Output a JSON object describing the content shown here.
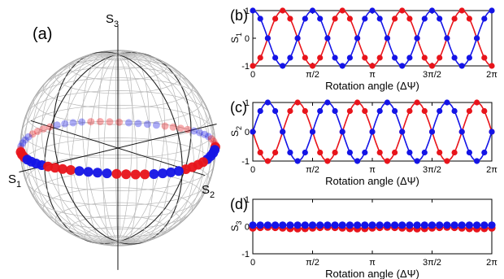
{
  "colors": {
    "red": "#e8141b",
    "blue": "#1414e6",
    "grid": "#b8b8b8",
    "axis": "#000000"
  },
  "sphere": {
    "panel_label": "(a)",
    "axis_labels": {
      "s1": "S",
      "s1_sub": "1",
      "s2": "S",
      "s2_sub": "2",
      "s3": "S",
      "s3_sub": "3"
    }
  },
  "chart_data": [
    {
      "type": "scatter",
      "panel": "(b)",
      "xlabel": "Rotation angle (ΔΨ)",
      "ylabel": "S",
      "ylabel_sub": "1",
      "xlim": [
        0,
        6.2832
      ],
      "ylim": [
        -1,
        1
      ],
      "xticks": [
        "0",
        "π/2",
        "π",
        "3π/2",
        "2π"
      ],
      "yticks": [
        "1",
        "0",
        "-1"
      ],
      "series": [
        {
          "color": "red",
          "model": "S1 = -cos(4ΔΨ)",
          "points": "sampled every π/16, values -cos(4x)"
        },
        {
          "color": "blue",
          "model": "S1 = cos(4ΔΨ)",
          "points": "sampled every π/16, values cos(4x)"
        }
      ]
    },
    {
      "type": "scatter",
      "panel": "(c)",
      "xlabel": "Rotation angle (ΔΨ)",
      "ylabel": "S",
      "ylabel_sub": "2",
      "xlim": [
        0,
        6.2832
      ],
      "ylim": [
        -1,
        1
      ],
      "xticks": [
        "0",
        "π/2",
        "π",
        "3π/2",
        "2π"
      ],
      "yticks": [
        "1",
        "0",
        "-1"
      ],
      "series": [
        {
          "color": "red",
          "model": "S2 = -sin(4ΔΨ)"
        },
        {
          "color": "blue",
          "model": "S2 = sin(4ΔΨ)"
        }
      ]
    },
    {
      "type": "scatter",
      "panel": "(d)",
      "xlabel": "Rotation angle (ΔΨ)",
      "ylabel": "S",
      "ylabel_sub": "3",
      "xlim": [
        0,
        6.2832
      ],
      "ylim": [
        -1,
        1
      ],
      "xticks": [
        "0",
        "π/2",
        "π",
        "3π/2",
        "2π"
      ],
      "yticks": [
        "1",
        "0",
        "-1"
      ],
      "series": [
        {
          "color": "red",
          "model": "S3 ≈ -0.05 + 0.03 sin(4ΔΨ)"
        },
        {
          "color": "blue",
          "model": "S3 ≈ 0.05"
        }
      ]
    }
  ]
}
